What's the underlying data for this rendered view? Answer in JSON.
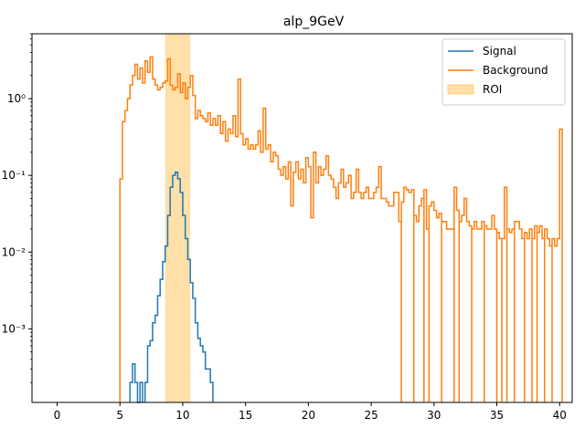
{
  "chart_data": {
    "type": "histogram-step",
    "title": "alp_9GeV",
    "xlabel": "",
    "ylabel": "",
    "xlim": [
      -2,
      41
    ],
    "ylim": [
      0.00011,
      7
    ],
    "yscale": "log",
    "x_ticks": [
      0,
      5,
      10,
      15,
      20,
      25,
      30,
      35,
      40
    ],
    "x_tick_labels": [
      "0",
      "5",
      "10",
      "15",
      "20",
      "25",
      "30",
      "35",
      "40"
    ],
    "y_ticks": [
      0.001,
      0.01,
      0.1,
      1
    ],
    "y_tick_labels": [
      "10⁻³",
      "10⁻²",
      "10⁻¹",
      "10⁰"
    ],
    "grid": false,
    "legend_position": "top-right",
    "legend": [
      {
        "label": "Signal",
        "kind": "line",
        "color": "#1f77b4"
      },
      {
        "label": "Background",
        "kind": "line",
        "color": "#ff7f0e"
      },
      {
        "label": "ROI",
        "kind": "patch",
        "color": "#ffe0a8"
      }
    ],
    "roi": {
      "x0": 8.6,
      "x1": 10.6,
      "color": "#ffe0a8"
    },
    "series": [
      {
        "name": "Signal",
        "color": "#1f77b4",
        "bin_width": 0.2,
        "points": [
          [
            5.8,
            0.0002
          ],
          [
            6.0,
            0.00035
          ],
          [
            6.2,
            0.0002
          ],
          [
            6.4,
            0.0001
          ],
          [
            6.6,
            0.0002
          ],
          [
            7.0,
            0.0002
          ],
          [
            7.2,
            0.0006
          ],
          [
            7.4,
            0.0007
          ],
          [
            7.6,
            0.0012
          ],
          [
            7.8,
            0.0015
          ],
          [
            8.0,
            0.0027
          ],
          [
            8.2,
            0.0044
          ],
          [
            8.4,
            0.0075
          ],
          [
            8.6,
            0.012
          ],
          [
            8.8,
            0.03
          ],
          [
            9.0,
            0.07
          ],
          [
            9.2,
            0.1
          ],
          [
            9.4,
            0.11
          ],
          [
            9.6,
            0.09
          ],
          [
            9.8,
            0.06
          ],
          [
            10.0,
            0.03
          ],
          [
            10.2,
            0.015
          ],
          [
            10.4,
            0.008
          ],
          [
            10.6,
            0.004
          ],
          [
            10.8,
            0.0025
          ],
          [
            11.0,
            0.0012
          ],
          [
            11.2,
            0.00075
          ],
          [
            11.4,
            0.0006
          ],
          [
            11.6,
            0.0005
          ],
          [
            11.8,
            0.0003
          ],
          [
            12.0,
            0.0003
          ],
          [
            12.2,
            0.0002
          ]
        ]
      },
      {
        "name": "Background",
        "color": "#ff7f0e",
        "bin_width": 0.2,
        "points": [
          [
            5.0,
            0.09
          ],
          [
            5.2,
            0.5
          ],
          [
            5.4,
            0.7
          ],
          [
            5.6,
            1.0
          ],
          [
            5.8,
            1.5
          ],
          [
            6.0,
            2.0
          ],
          [
            6.2,
            2.8
          ],
          [
            6.4,
            1.8
          ],
          [
            6.6,
            2.5
          ],
          [
            6.8,
            1.6
          ],
          [
            7.0,
            3.1
          ],
          [
            7.2,
            2.2
          ],
          [
            7.4,
            3.5
          ],
          [
            7.6,
            1.8
          ],
          [
            7.8,
            1.5
          ],
          [
            8.0,
            1.3
          ],
          [
            8.2,
            1.4
          ],
          [
            8.4,
            1.6
          ],
          [
            8.6,
            1.7
          ],
          [
            8.8,
            3.3
          ],
          [
            9.0,
            1.5
          ],
          [
            9.2,
            1.3
          ],
          [
            9.4,
            1.4
          ],
          [
            9.6,
            2.1
          ],
          [
            9.8,
            1.2
          ],
          [
            10.0,
            1.6
          ],
          [
            10.2,
            1.0
          ],
          [
            10.4,
            1.4
          ],
          [
            10.6,
            2.0
          ],
          [
            10.8,
            1.1
          ],
          [
            11.0,
            0.55
          ],
          [
            11.2,
            0.7
          ],
          [
            11.4,
            0.6
          ],
          [
            11.6,
            0.55
          ],
          [
            11.8,
            0.5
          ],
          [
            12.0,
            0.65
          ],
          [
            12.2,
            0.45
          ],
          [
            12.4,
            0.55
          ],
          [
            12.6,
            0.45
          ],
          [
            12.8,
            0.6
          ],
          [
            13.0,
            0.35
          ],
          [
            13.2,
            0.5
          ],
          [
            13.4,
            0.28
          ],
          [
            13.6,
            0.4
          ],
          [
            13.8,
            0.35
          ],
          [
            14.0,
            0.6
          ],
          [
            14.2,
            0.32
          ],
          [
            14.4,
            1.8
          ],
          [
            14.6,
            0.35
          ],
          [
            14.8,
            0.25
          ],
          [
            15.0,
            0.3
          ],
          [
            15.2,
            0.22
          ],
          [
            15.4,
            0.25
          ],
          [
            15.6,
            0.22
          ],
          [
            15.8,
            0.25
          ],
          [
            16.0,
            0.38
          ],
          [
            16.2,
            0.2
          ],
          [
            16.4,
            0.75
          ],
          [
            16.6,
            0.22
          ],
          [
            16.8,
            0.25
          ],
          [
            17.0,
            0.15
          ],
          [
            17.2,
            0.2
          ],
          [
            17.4,
            0.18
          ],
          [
            17.6,
            0.12
          ],
          [
            17.8,
            0.1
          ],
          [
            18.0,
            0.13
          ],
          [
            18.2,
            0.09
          ],
          [
            18.4,
            0.15
          ],
          [
            18.6,
            0.04
          ],
          [
            18.8,
            0.11
          ],
          [
            19.0,
            0.15
          ],
          [
            19.2,
            0.09
          ],
          [
            19.4,
            0.12
          ],
          [
            19.6,
            0.08
          ],
          [
            19.8,
            0.17
          ],
          [
            20.0,
            0.13
          ],
          [
            20.2,
            0.028
          ],
          [
            20.4,
            0.2
          ],
          [
            20.6,
            0.08
          ],
          [
            20.8,
            0.13
          ],
          [
            21.0,
            0.1
          ],
          [
            21.2,
            0.12
          ],
          [
            21.4,
            0.18
          ],
          [
            21.6,
            0.1
          ],
          [
            21.8,
            0.09
          ],
          [
            22.0,
            0.07
          ],
          [
            22.2,
            0.05
          ],
          [
            22.4,
            0.08
          ],
          [
            22.6,
            0.12
          ],
          [
            22.8,
            0.07
          ],
          [
            23.0,
            0.08
          ],
          [
            23.2,
            0.1
          ],
          [
            23.4,
            0.05
          ],
          [
            23.6,
            0.06
          ],
          [
            23.8,
            0.12
          ],
          [
            24.0,
            0.06
          ],
          [
            24.2,
            0.05
          ],
          [
            24.4,
            0.06
          ],
          [
            24.6,
            0.07
          ],
          [
            24.8,
            0.05
          ],
          [
            25.0,
            0.05
          ],
          [
            25.2,
            0.06
          ],
          [
            25.4,
            0.07
          ],
          [
            25.6,
            0.13
          ],
          [
            25.8,
            0.05
          ],
          [
            26.0,
            0.05
          ],
          [
            26.2,
            0.045
          ],
          [
            26.4,
            0.04
          ],
          [
            26.6,
            0.04
          ],
          [
            26.8,
            0.06
          ],
          [
            27.0,
            0.06
          ],
          [
            27.2,
            0.025
          ],
          [
            27.4,
            0.045
          ],
          [
            27.6,
            0.07
          ],
          [
            27.8,
            0.065
          ],
          [
            28.0,
            0.06
          ],
          [
            28.2,
            0.065
          ],
          [
            28.4,
            0.03
          ],
          [
            28.6,
            0.025
          ],
          [
            28.8,
            0.04
          ],
          [
            29.0,
            0.05
          ],
          [
            29.2,
            0.065
          ],
          [
            29.4,
            0.02
          ],
          [
            29.6,
            0.04
          ],
          [
            29.8,
            0.045
          ],
          [
            30.0,
            0.035
          ],
          [
            30.2,
            0.028
          ],
          [
            30.4,
            0.032
          ],
          [
            30.6,
            0.025
          ],
          [
            30.8,
            0.025
          ],
          [
            31.0,
            0.02
          ],
          [
            31.2,
            0.02
          ],
          [
            31.4,
            0.02
          ],
          [
            31.6,
            0.07
          ],
          [
            31.8,
            0.035
          ],
          [
            32.0,
            0.025
          ],
          [
            32.2,
            0.03
          ],
          [
            32.4,
            0.05
          ],
          [
            32.6,
            0.025
          ],
          [
            32.8,
            0.022
          ],
          [
            33.0,
            0.02
          ],
          [
            33.2,
            0.025
          ],
          [
            33.4,
            0.02
          ],
          [
            33.6,
            0.02
          ],
          [
            33.8,
            0.025
          ],
          [
            34.0,
            0.022
          ],
          [
            34.2,
            0.02
          ],
          [
            34.4,
            0.02
          ],
          [
            34.6,
            0.03
          ],
          [
            34.8,
            0.02
          ],
          [
            35.0,
            0.018
          ],
          [
            35.2,
            0.015
          ],
          [
            35.4,
            0.015
          ],
          [
            35.6,
            0.07
          ],
          [
            35.8,
            0.02
          ],
          [
            36.0,
            0.018
          ],
          [
            36.2,
            0.02
          ],
          [
            36.4,
            0.025
          ],
          [
            36.6,
            0.025
          ],
          [
            36.8,
            0.02
          ],
          [
            37.0,
            0.015
          ],
          [
            37.2,
            0.018
          ],
          [
            37.4,
            0.015
          ],
          [
            37.6,
            0.02
          ],
          [
            37.8,
            0.015
          ],
          [
            38.0,
            0.022
          ],
          [
            38.2,
            0.018
          ],
          [
            38.4,
            0.022
          ],
          [
            38.6,
            0.015
          ],
          [
            38.8,
            0.02
          ],
          [
            39.0,
            0.015
          ],
          [
            39.2,
            0.012
          ],
          [
            39.4,
            0.015
          ],
          [
            39.6,
            0.012
          ],
          [
            39.8,
            0.015
          ],
          [
            40.0,
            0.4
          ]
        ],
        "gaps": [
          [
            27.4,
            27.6
          ],
          [
            28.4,
            28.6
          ],
          [
            29.2,
            29.4
          ],
          [
            29.6,
            29.8
          ],
          [
            30.6,
            30.8
          ],
          [
            31.6,
            31.8
          ],
          [
            32.0,
            32.2
          ],
          [
            33.0,
            33.2
          ],
          [
            34.0,
            34.2
          ],
          [
            35.0,
            35.2
          ],
          [
            35.4,
            35.6
          ],
          [
            35.8,
            36.0
          ],
          [
            36.4,
            36.6
          ],
          [
            37.2,
            37.4
          ],
          [
            37.8,
            38.0
          ],
          [
            38.2,
            38.4
          ],
          [
            38.8,
            39.0
          ],
          [
            39.4,
            39.6
          ]
        ]
      }
    ]
  }
}
